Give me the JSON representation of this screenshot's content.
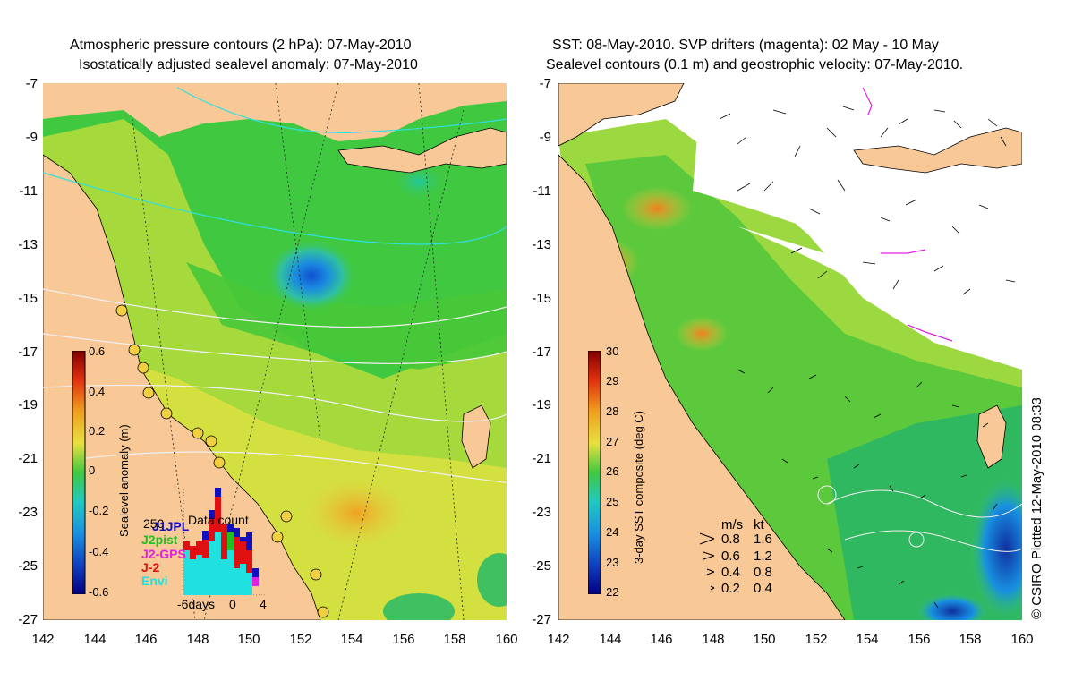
{
  "left_panel": {
    "title_line1": "Atmospheric pressure contours (2 hPa): 07-May-2010",
    "title_line2": "Isostatically adjusted sealevel anomaly: 07-May-2010",
    "colorbar": {
      "label": "Sealevel anomaly (m)",
      "ticks": [
        "0.6",
        "0.4",
        "0.2",
        "0",
        "-0.2",
        "-0.4",
        "-0.6"
      ],
      "range": [
        -0.6,
        0.6
      ]
    },
    "data_count": {
      "title": "Data count",
      "max_label": "250",
      "series": [
        {
          "name": "J1JPL",
          "color": "#1010c0"
        },
        {
          "name": "J2pist",
          "color": "#20c020"
        },
        {
          "name": "J2-GPS",
          "color": "#e020e0"
        },
        {
          "name": "J-2",
          "color": "#e01010"
        },
        {
          "name": "Envi",
          "color": "#20e0e0"
        }
      ],
      "x_labels": [
        "-6days",
        "0",
        "4"
      ]
    }
  },
  "right_panel": {
    "title_line1": "SST: 08-May-2010. SVP drifters (magenta): 02 May - 10 May",
    "title_line2": "Sealevel contours (0.1 m) and geostrophic velocity: 07-May-2010.",
    "colorbar": {
      "label": "3-day SST composite (deg C)",
      "ticks": [
        "30",
        "29",
        "28",
        "27",
        "26",
        "25",
        "24",
        "23",
        "22"
      ],
      "range": [
        22,
        30
      ]
    },
    "velocity_legend": {
      "header_ms": "m/s",
      "header_kt": "kt",
      "rows": [
        {
          "ms": "0.8",
          "kt": "1.6"
        },
        {
          "ms": "0.6",
          "kt": "1.2"
        },
        {
          "ms": "0.4",
          "kt": "0.8"
        },
        {
          "ms": "0.2",
          "kt": "0.4"
        }
      ]
    },
    "credit": "© CSIRO Plotted 12-May-2010 08:33"
  },
  "axes": {
    "lat_ticks": [
      "-7",
      "-9",
      "-11",
      "-13",
      "-15",
      "-17",
      "-19",
      "-21",
      "-23",
      "-25",
      "-27"
    ],
    "lon_ticks": [
      "142",
      "144",
      "146",
      "148",
      "150",
      "152",
      "154",
      "156",
      "158",
      "160"
    ],
    "lat_range": [
      -27,
      -7
    ],
    "lon_range": [
      142,
      160
    ]
  },
  "colors": {
    "land": "#f8c896",
    "sea_green": "#40c840",
    "sea_yellow": "#e8e040"
  }
}
